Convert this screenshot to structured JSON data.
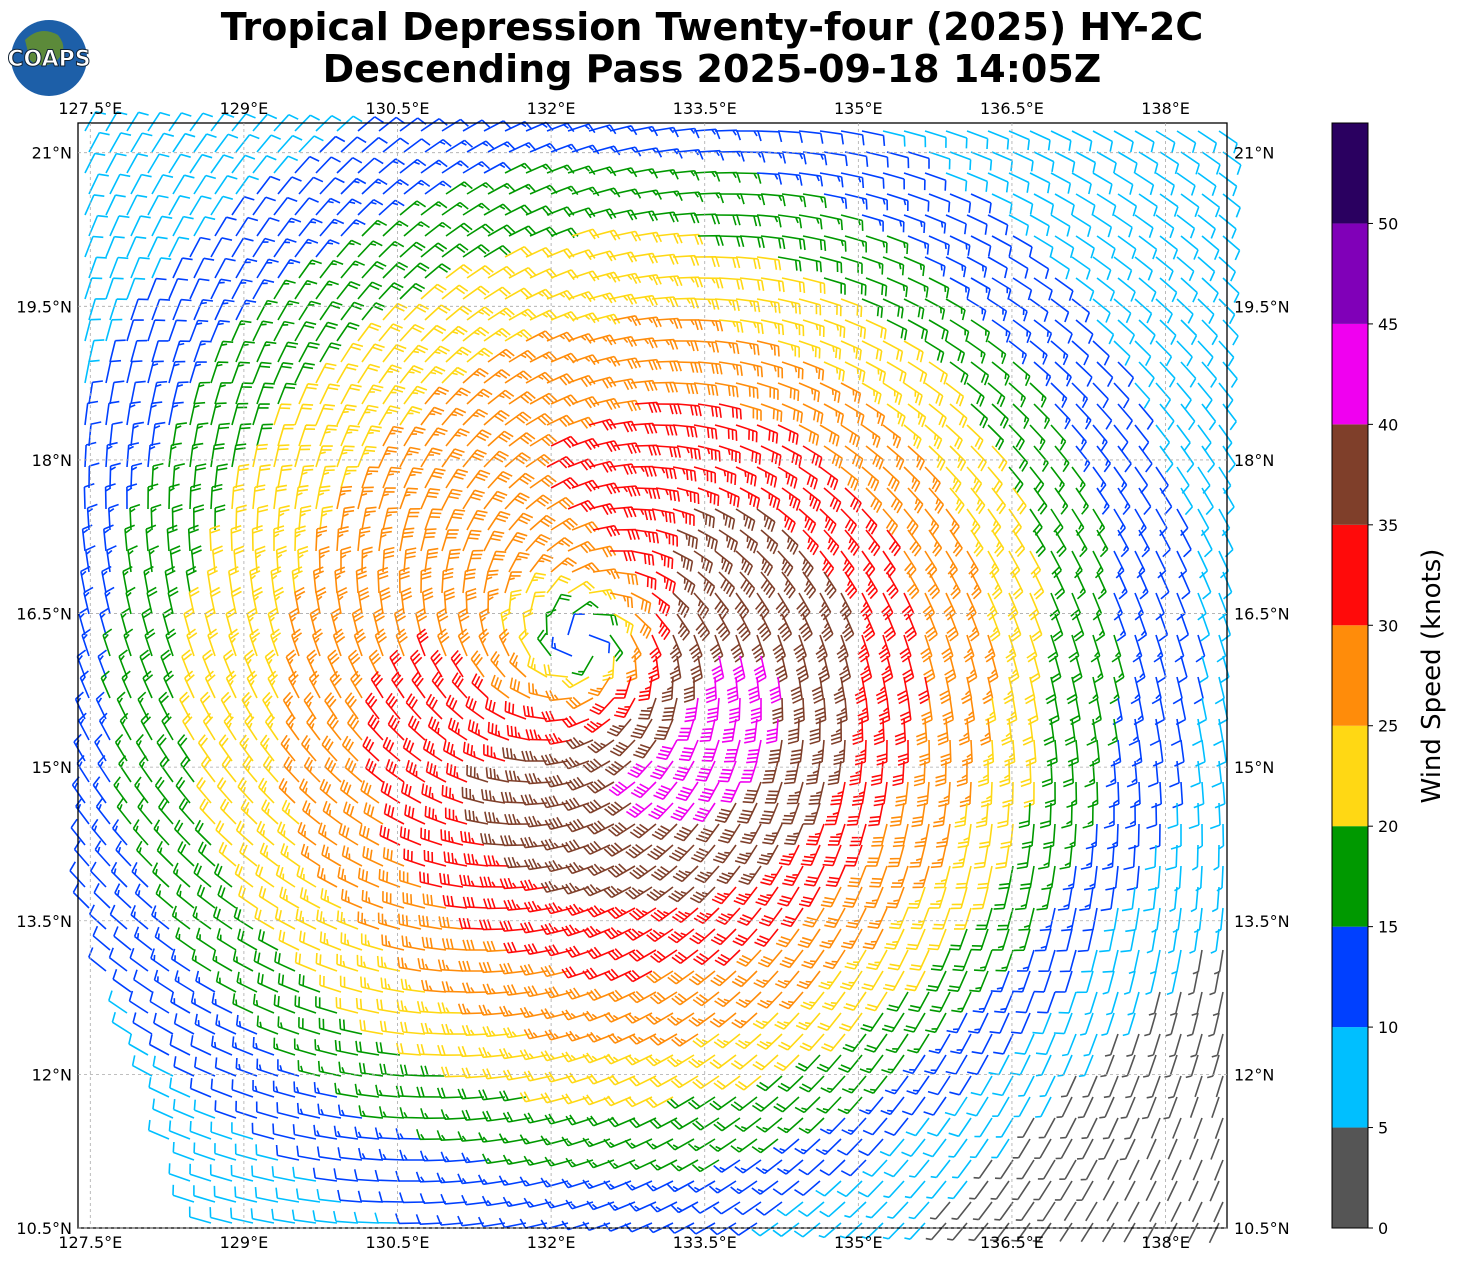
{
  "title": [
    "Tropical Depression Twenty-four (2025) HY-2C",
    "Descending Pass 2025-09-18 14:05Z"
  ],
  "logo": "COAPS",
  "map": {
    "xlim": [
      127.38,
      138.6
    ],
    "ylim": [
      10.5,
      21.29
    ],
    "xticks": [
      {
        "value": 127.5,
        "label": "127.5°E"
      },
      {
        "value": 129,
        "label": "129°E"
      },
      {
        "value": 130.5,
        "label": "130.5°E"
      },
      {
        "value": 132,
        "label": "132°E"
      },
      {
        "value": 133.5,
        "label": "133.5°E"
      },
      {
        "value": 135,
        "label": "135°E"
      },
      {
        "value": 136.5,
        "label": "136.5°E"
      },
      {
        "value": 138,
        "label": "138°E"
      }
    ],
    "yticks": [
      {
        "value": 10.5,
        "label": "10.5°N"
      },
      {
        "value": 12,
        "label": "12°N"
      },
      {
        "value": 13.5,
        "label": "13.5°N"
      },
      {
        "value": 15,
        "label": "15°N"
      },
      {
        "value": 16.5,
        "label": "16.5°N"
      },
      {
        "value": 18,
        "label": "18°N"
      },
      {
        "value": 19.5,
        "label": "19.5°N"
      },
      {
        "value": 21,
        "label": "21°N"
      }
    ],
    "grid": true
  },
  "colorbar": {
    "label": "Wind Speed (knots)",
    "lim": [
      0,
      55
    ],
    "bounds": [
      0,
      5,
      10,
      15,
      20,
      25,
      30,
      35,
      40,
      45,
      50,
      55
    ],
    "colors": [
      "#555555",
      "#00bfff",
      "#0040ff",
      "#009900",
      "#ffd814",
      "#ff8c0a",
      "#ff0a0a",
      "#7f3f2a",
      "#f000f0",
      "#8000b8",
      "#2a0060"
    ],
    "ticks": [
      0,
      5,
      10,
      15,
      20,
      25,
      30,
      35,
      40,
      45,
      50
    ]
  }
}
